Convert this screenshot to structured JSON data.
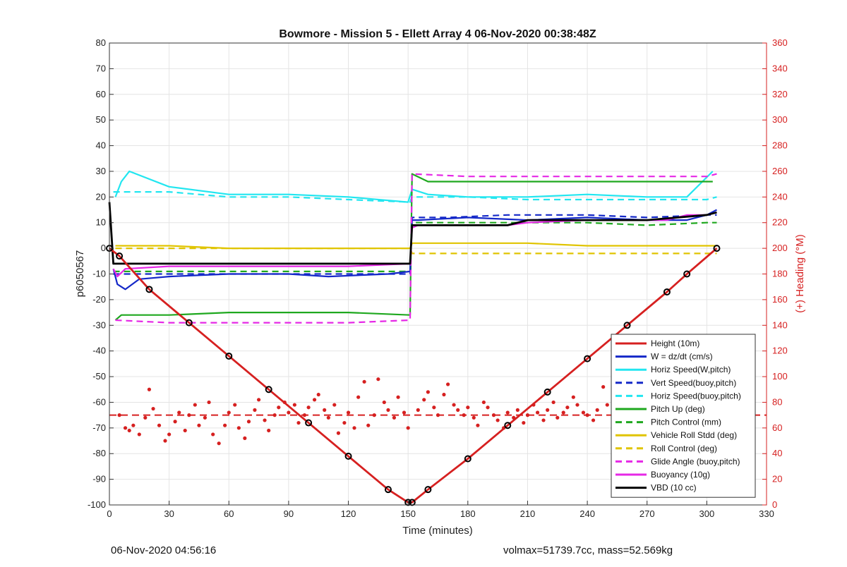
{
  "chart_data": {
    "type": "line",
    "title": "Bowmore - Mission 5 - Ellett Array 4 06-Nov-2020 00:38:48Z",
    "xlabel": "Time (minutes)",
    "ylabel": "p6050567",
    "y2label": "(+) Heading (°M)",
    "xlim": [
      0,
      330
    ],
    "ylim": [
      -100,
      80
    ],
    "y2lim": [
      0,
      360
    ],
    "xticks": [
      0,
      30,
      60,
      90,
      120,
      150,
      180,
      210,
      240,
      270,
      300,
      330
    ],
    "yticks": [
      80,
      70,
      60,
      50,
      40,
      30,
      20,
      10,
      0,
      -10,
      -20,
      -30,
      -40,
      -50,
      -60,
      -70,
      -80,
      -90,
      -100
    ],
    "y2ticks": [
      360,
      340,
      320,
      300,
      280,
      260,
      240,
      220,
      200,
      180,
      160,
      140,
      120,
      100,
      80,
      60,
      40,
      20,
      0
    ],
    "grid": true,
    "legend_position": "bottom-right",
    "colors": {
      "red": "#d62020",
      "blue": "#1428c8",
      "cyan": "#22e6f0",
      "green": "#1fa81f",
      "yellow": "#e0c400",
      "magenta": "#e628e6",
      "black": "#000000",
      "right_axis": "#d62020"
    },
    "series": [
      {
        "name": "Height (10m)",
        "color": "#d62020",
        "style": "solid",
        "x": [
          0,
          5,
          20,
          40,
          60,
          80,
          100,
          120,
          140,
          150,
          152,
          160,
          180,
          200,
          220,
          240,
          260,
          280,
          290,
          305
        ],
        "y": [
          0,
          -3,
          -16,
          -29,
          -42,
          -55,
          -68,
          -81,
          -94,
          -99,
          -99,
          -94,
          -82,
          -69,
          -56,
          -43,
          -30,
          -17,
          -10,
          0
        ]
      },
      {
        "name": "W = dz/dt (cm/s)",
        "color": "#1428c8",
        "style": "solid",
        "x": [
          2,
          4,
          8,
          15,
          30,
          60,
          90,
          110,
          140,
          151,
          152,
          155,
          180,
          210,
          240,
          270,
          290,
          300,
          305
        ],
        "y": [
          -8,
          -14,
          -16,
          -12,
          -11,
          -10,
          -10,
          -11,
          -10,
          -9,
          11,
          11,
          12,
          11,
          12,
          11,
          11,
          13,
          15
        ]
      },
      {
        "name": "Horiz Speed(W,pitch)",
        "color": "#22e6f0",
        "style": "solid",
        "x": [
          3,
          6,
          10,
          30,
          60,
          90,
          120,
          150,
          152,
          160,
          180,
          210,
          240,
          270,
          290,
          303
        ],
        "y": [
          20,
          26,
          30,
          24,
          21,
          21,
          20,
          18,
          23,
          21,
          20,
          20,
          21,
          20,
          20,
          30
        ]
      },
      {
        "name": "Vert Speed(buoy,pitch)",
        "color": "#1428c8",
        "style": "dashed",
        "x": [
          2,
          10,
          30,
          60,
          90,
          120,
          151,
          152,
          170,
          200,
          240,
          270,
          300,
          305
        ],
        "y": [
          -10,
          -10,
          -10,
          -10,
          -10,
          -10,
          -10,
          12,
          12,
          13,
          13,
          12,
          13,
          13
        ]
      },
      {
        "name": "Horiz Speed(buoy,pitch)",
        "color": "#22e6f0",
        "style": "dashed",
        "x": [
          2,
          10,
          30,
          60,
          90,
          120,
          151,
          152,
          180,
          210,
          240,
          270,
          300,
          305
        ],
        "y": [
          22,
          22,
          22,
          20,
          20,
          19,
          18,
          20,
          20,
          19,
          19,
          19,
          19,
          20
        ]
      },
      {
        "name": "Pitch Up (deg)",
        "color": "#1fa81f",
        "style": "solid",
        "x": [
          3,
          6,
          30,
          60,
          90,
          120,
          151,
          152,
          160,
          200,
          240,
          280,
          303
        ],
        "y": [
          -28,
          -26,
          -26,
          -25,
          -25,
          -25,
          -26,
          29,
          26,
          26,
          26,
          26,
          26
        ]
      },
      {
        "name": "Pitch Control (mm)",
        "color": "#1fa81f",
        "style": "dashed",
        "x": [
          2,
          30,
          60,
          90,
          120,
          151,
          152,
          180,
          210,
          240,
          270,
          300,
          305
        ],
        "y": [
          -9,
          -9,
          -9,
          -9,
          -9,
          -9,
          10,
          10,
          10,
          10,
          9,
          10,
          10
        ]
      },
      {
        "name": "Vehicle Roll Stdd (deg)",
        "color": "#e0c400",
        "style": "solid",
        "x": [
          3,
          10,
          30,
          60,
          90,
          120,
          151,
          152,
          180,
          210,
          240,
          270,
          300,
          305
        ],
        "y": [
          1,
          1,
          1,
          0,
          0,
          0,
          0,
          2,
          2,
          2,
          1,
          1,
          1,
          1
        ]
      },
      {
        "name": "Roll Control (deg)",
        "color": "#e0c400",
        "style": "dashed",
        "x": [
          3,
          10,
          30,
          60,
          90,
          120,
          151,
          152,
          180,
          210,
          240,
          270,
          300,
          305
        ],
        "y": [
          0,
          0,
          0,
          0,
          0,
          0,
          0,
          -2,
          -2,
          -2,
          -2,
          -2,
          -2,
          -2
        ]
      },
      {
        "name": "Glide Angle (buoy,pitch)",
        "color": "#e628e6",
        "style": "dashed",
        "x": [
          3,
          30,
          60,
          90,
          120,
          151,
          152,
          180,
          210,
          240,
          270,
          300,
          305
        ],
        "y": [
          -28,
          -29,
          -29,
          -29,
          -29,
          -28,
          29,
          28,
          28,
          28,
          28,
          28,
          29
        ]
      },
      {
        "name": "Buoyancy (10g)",
        "color": "#e628e6",
        "style": "solid",
        "x": [
          2,
          4,
          8,
          30,
          60,
          90,
          120,
          151,
          152,
          155,
          180,
          200,
          210,
          240,
          280,
          290,
          300,
          305
        ],
        "y": [
          -8,
          -11,
          -8,
          -7,
          -7,
          -7,
          -7,
          -6,
          8,
          9,
          9,
          9,
          10,
          11,
          11,
          13,
          13,
          14
        ]
      },
      {
        "name": "VBD (10 cc)",
        "color": "#000000",
        "style": "solid",
        "x": [
          0,
          2,
          3,
          30,
          60,
          90,
          120,
          151,
          152,
          155,
          180,
          200,
          210,
          240,
          270,
          300,
          305
        ],
        "y": [
          18,
          -6,
          -6,
          -6,
          -6,
          -6,
          -6,
          -6,
          9,
          9,
          9,
          9,
          11,
          11,
          11,
          13,
          14
        ]
      }
    ],
    "heading_reference": {
      "value": 70,
      "axis": "right",
      "color": "#d62020",
      "style": "dashed"
    },
    "heading_points": {
      "axis": "right",
      "color": "#d62020",
      "x": [
        5,
        8,
        10,
        12,
        15,
        18,
        20,
        22,
        25,
        28,
        30,
        33,
        35,
        38,
        40,
        43,
        45,
        48,
        50,
        52,
        55,
        58,
        60,
        63,
        65,
        68,
        70,
        73,
        75,
        78,
        80,
        83,
        85,
        88,
        90,
        93,
        95,
        98,
        100,
        103,
        105,
        108,
        110,
        113,
        115,
        118,
        120,
        123,
        125,
        128,
        130,
        133,
        135,
        138,
        140,
        143,
        145,
        148,
        150,
        155,
        158,
        160,
        163,
        165,
        168,
        170,
        173,
        175,
        178,
        180,
        183,
        185,
        188,
        190,
        193,
        195,
        198,
        200,
        203,
        205,
        208,
        210,
        213,
        215,
        218,
        220,
        223,
        225,
        228,
        230,
        233,
        235,
        238,
        240,
        243,
        245,
        248,
        250,
        253,
        255,
        258,
        260,
        263,
        265,
        268,
        270,
        273,
        275,
        278,
        280,
        283,
        285,
        288,
        290,
        293,
        295,
        298,
        300
      ],
      "y": [
        70,
        60,
        58,
        62,
        55,
        68,
        90,
        75,
        62,
        50,
        55,
        65,
        72,
        58,
        70,
        78,
        62,
        68,
        80,
        55,
        48,
        62,
        72,
        78,
        60,
        52,
        65,
        74,
        82,
        66,
        58,
        70,
        76,
        80,
        72,
        78,
        64,
        70,
        76,
        82,
        86,
        74,
        68,
        78,
        56,
        64,
        72,
        60,
        84,
        96,
        62,
        70,
        98,
        80,
        74,
        68,
        84,
        72,
        60,
        74,
        82,
        88,
        76,
        70,
        86,
        94,
        78,
        74,
        70,
        76,
        68,
        62,
        80,
        76,
        70,
        66,
        60,
        72,
        68,
        74,
        64,
        70,
        78,
        72,
        66,
        74,
        80,
        68,
        72,
        76,
        84,
        78,
        72,
        70,
        66,
        74,
        92,
        78,
        72,
        86,
        70,
        62,
        68,
        74,
        80,
        72,
        78,
        86,
        90,
        82,
        74,
        68,
        62,
        70,
        78,
        60,
        64,
        46
      ]
    },
    "legend": [
      "Height (10m)",
      "W = dz/dt (cm/s)",
      "Horiz Speed(W,pitch)",
      "Vert Speed(buoy,pitch)",
      "Horiz Speed(buoy,pitch)",
      "Pitch Up (deg)",
      "Pitch Control (mm)",
      "Vehicle Roll Stdd (deg)",
      "Roll Control (deg)",
      "Glide Angle (buoy,pitch)",
      "Buoyancy (10g)",
      "VBD (10 cc)"
    ]
  },
  "footer": {
    "left": "06-Nov-2020 04:56:16",
    "right": "volmax=51739.7cc, mass=52.569kg"
  }
}
